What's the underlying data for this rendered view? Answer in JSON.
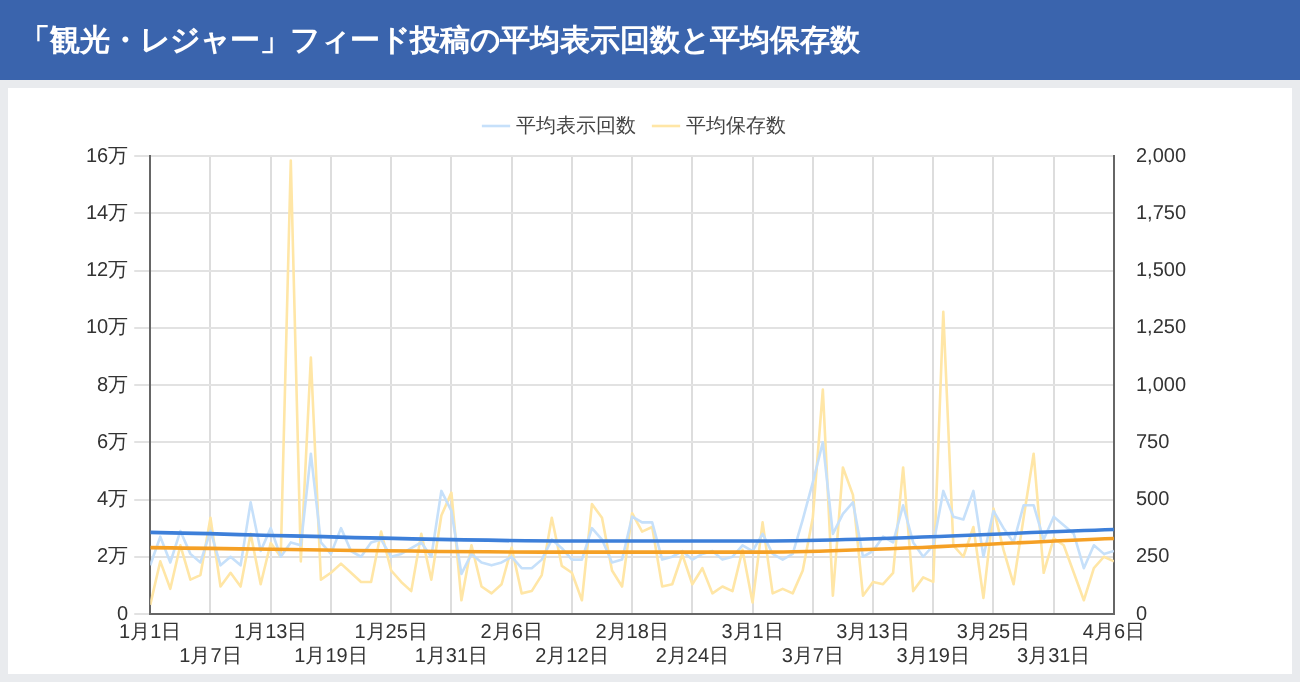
{
  "chart_data": {
    "type": "line",
    "title": "「観光・レジャー」フィード投稿の平均表示回数と平均保存数",
    "categories": [
      "1月1日",
      null,
      null,
      null,
      null,
      null,
      "1月7日",
      null,
      null,
      null,
      null,
      null,
      "1月13日",
      null,
      null,
      null,
      null,
      null,
      "1月19日",
      null,
      null,
      null,
      null,
      null,
      "1月25日",
      null,
      null,
      null,
      null,
      null,
      "1月31日",
      null,
      null,
      null,
      null,
      null,
      "2月6日",
      null,
      null,
      null,
      null,
      null,
      "2月12日",
      null,
      null,
      null,
      null,
      null,
      "2月18日",
      null,
      null,
      null,
      null,
      null,
      "2月24日",
      null,
      null,
      null,
      null,
      null,
      "3月1日",
      null,
      null,
      null,
      null,
      null,
      "3月7日",
      null,
      null,
      null,
      null,
      null,
      "3月13日",
      null,
      null,
      null,
      null,
      null,
      "3月19日",
      null,
      null,
      null,
      null,
      null,
      "3月25日",
      null,
      null,
      null,
      null,
      null,
      "3月31日",
      null,
      null,
      null,
      null,
      null,
      "4月6日"
    ],
    "series": [
      {
        "name": "平均表示回数",
        "color": "#c6e0fa",
        "values": [
          1.7,
          2.7,
          1.8,
          2.9,
          2.1,
          1.8,
          2.9,
          1.7,
          2.0,
          1.7,
          3.9,
          2.2,
          3.0,
          2.0,
          2.5,
          2.4,
          5.6,
          2.5,
          2.1,
          3.0,
          2.2,
          2.0,
          2.5,
          2.6,
          2.0,
          2.1,
          2.3,
          2.5,
          2.0,
          4.3,
          3.6,
          1.4,
          2.1,
          1.8,
          1.7,
          1.8,
          2.0,
          1.6,
          1.6,
          1.9,
          2.6,
          2.3,
          1.9,
          1.9,
          3.0,
          2.6,
          1.8,
          1.9,
          3.4,
          3.2,
          3.2,
          1.9,
          2.0,
          2.2,
          1.9,
          2.1,
          2.2,
          1.9,
          2.0,
          2.4,
          2.2,
          2.8,
          2.1,
          1.9,
          2.1,
          3.3,
          4.6,
          6.0,
          2.8,
          3.5,
          3.9,
          2.0,
          2.2,
          2.7,
          2.5,
          3.8,
          2.5,
          2.0,
          2.4,
          4.3,
          3.4,
          3.3,
          4.3,
          2.0,
          3.6,
          3.0,
          2.5,
          3.8,
          3.8,
          2.6,
          3.4,
          3.1,
          2.8,
          1.6,
          2.4,
          2.1,
          2.2
        ]
      },
      {
        "name": "平均保存数",
        "color": "#ffe6a6",
        "axis": "y2",
        "values": [
          40,
          230,
          110,
          300,
          150,
          170,
          420,
          120,
          180,
          120,
          350,
          130,
          310,
          250,
          1980,
          230,
          1120,
          150,
          180,
          220,
          180,
          140,
          140,
          360,
          190,
          140,
          100,
          350,
          150,
          430,
          530,
          60,
          300,
          120,
          90,
          130,
          290,
          90,
          100,
          170,
          420,
          210,
          180,
          60,
          480,
          420,
          190,
          120,
          440,
          360,
          380,
          120,
          130,
          260,
          130,
          200,
          90,
          120,
          100,
          280,
          50,
          400,
          90,
          110,
          90,
          190,
          420,
          980,
          80,
          640,
          520,
          80,
          140,
          130,
          180,
          640,
          100,
          160,
          140,
          1320,
          300,
          250,
          380,
          70,
          460,
          280,
          130,
          420,
          700,
          180,
          330,
          300,
          180,
          60,
          200,
          250,
          230
        ]
      },
      {
        "type": "line",
        "color": "#3d7fd9",
        "x": [
          "1月1日",
          "2月12日",
          "3月1日",
          "4月6日"
        ],
        "values": [
          2.85,
          2.55,
          2.55,
          2.95
        ]
      },
      {
        "type": "line",
        "color": "#f5a025",
        "axis": "y2",
        "x": [
          "1月1日",
          "2月12日",
          "3月1日",
          "4月6日"
        ],
        "values": [
          290,
          270,
          270,
          330
        ]
      }
    ],
    "ylim": [
      0,
      16
    ],
    "yticks": [
      {
        "value": 0,
        "label": "0"
      },
      {
        "value": 2,
        "label": "2万"
      },
      {
        "value": 4,
        "label": "4万"
      },
      {
        "value": 6,
        "label": "6万"
      },
      {
        "value": 8,
        "label": "8万"
      },
      {
        "value": 10,
        "label": "10万"
      },
      {
        "value": 12,
        "label": "12万"
      },
      {
        "value": 14,
        "label": "14万"
      },
      {
        "value": 16,
        "label": "16万"
      }
    ],
    "y2lim": [
      0,
      2000
    ],
    "y2ticks": [
      {
        "value": 0,
        "label": "0"
      },
      {
        "value": 250,
        "label": "250"
      },
      {
        "value": 500,
        "label": "500"
      },
      {
        "value": 750,
        "label": "750"
      },
      {
        "value": 1000,
        "label": "1,000"
      },
      {
        "value": 1250,
        "label": "1,250"
      },
      {
        "value": 1500,
        "label": "1,500"
      },
      {
        "value": 1750,
        "label": "1,750"
      },
      {
        "value": 2000,
        "label": "2,000"
      }
    ],
    "grid": true,
    "legend": "top",
    "marker": "none",
    "line_style": "solid"
  }
}
